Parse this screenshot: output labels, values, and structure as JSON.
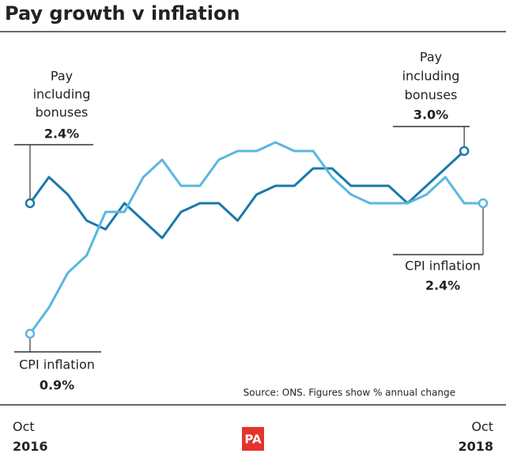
{
  "chart_data": {
    "type": "line",
    "title": "Pay growth v inflation",
    "source": "Source: ONS. Figures show % annual change",
    "logo": "PA",
    "categories": [
      "Oct 2016",
      null,
      null,
      null,
      null,
      null,
      null,
      null,
      null,
      null,
      null,
      null,
      null,
      null,
      null,
      null,
      null,
      null,
      null,
      null,
      null,
      null,
      null,
      null,
      "Oct 2018"
    ],
    "ylim": [
      0.5,
      3.4
    ],
    "grid": false,
    "series": [
      {
        "label_lines": [
          "Pay",
          "including",
          "bonuses"
        ],
        "color": "#1b78ab",
        "values": [
          2.4,
          2.7,
          2.5,
          2.2,
          2.1,
          2.4,
          2.2,
          2.0,
          2.3,
          2.4,
          2.4,
          2.2,
          2.5,
          2.6,
          2.6,
          2.8,
          2.8,
          2.6,
          2.6,
          2.6,
          2.4,
          2.6,
          2.8,
          3.0,
          null
        ],
        "value_labels": [
          "2.4%",
          null,
          null,
          null,
          null,
          null,
          null,
          null,
          null,
          null,
          null,
          null,
          null,
          null,
          null,
          null,
          null,
          null,
          null,
          null,
          null,
          null,
          null,
          "3.0%",
          null
        ]
      },
      {
        "label_lines": [
          "CPI inflation"
        ],
        "color": "#5bb6e0",
        "values": [
          0.9,
          1.2,
          1.6,
          1.8,
          2.3,
          2.3,
          2.7,
          2.9,
          2.6,
          2.6,
          2.9,
          3.0,
          3.0,
          3.1,
          3.0,
          3.0,
          2.7,
          2.5,
          2.4,
          2.4,
          2.4,
          2.5,
          2.7,
          2.4,
          2.4
        ],
        "value_labels": [
          "0.9%",
          null,
          null,
          null,
          null,
          null,
          null,
          null,
          null,
          null,
          null,
          null,
          null,
          null,
          null,
          null,
          null,
          null,
          null,
          null,
          null,
          null,
          null,
          null,
          "2.4%"
        ]
      }
    ]
  }
}
